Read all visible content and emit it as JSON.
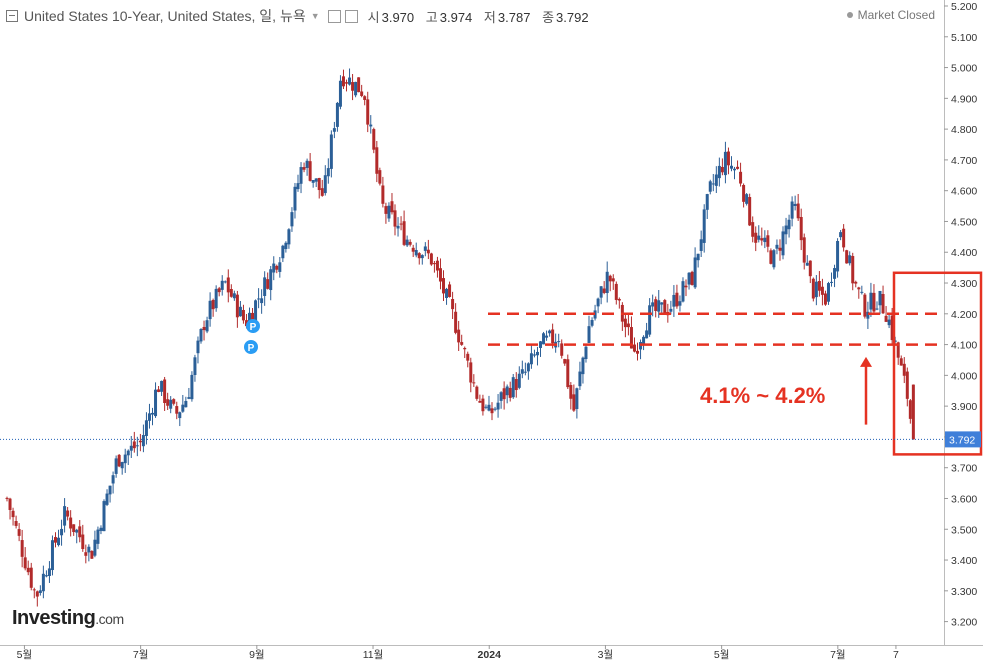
{
  "header": {
    "title": "United States 10-Year, United States, 일, 뉴욕",
    "open_label": "시",
    "open": "3.970",
    "high_label": "고",
    "high": "3.974",
    "low_label": "저",
    "low": "3.787",
    "close_label": "종",
    "close": "3.792",
    "status": "Market Closed"
  },
  "brand": {
    "name": "Investing",
    "suffix": ".com"
  },
  "annotation": {
    "text": "4.1% ~ 4.2%"
  },
  "colors": {
    "up": "#2b5f97",
    "down": "#b22a2a",
    "annotation": "#e53222",
    "price_line": "#1e5fb4",
    "price_badge": "#3f7fd9"
  },
  "chart_data": {
    "type": "candlestick",
    "title": "United States 10-Year, United States, 일, 뉴욕",
    "ylim": [
      3.16,
      5.22
    ],
    "y_ticks": [
      "5.200",
      "5.100",
      "5.000",
      "4.900",
      "4.800",
      "4.700",
      "4.600",
      "4.500",
      "4.400",
      "4.300",
      "4.200",
      "4.100",
      "4.000",
      "3.900",
      "3.800",
      "3.700",
      "3.600",
      "3.500",
      "3.400",
      "3.300",
      "3.200"
    ],
    "x_ticks": [
      "5월",
      "7월",
      "9월",
      "11월",
      "2024",
      "3월",
      "5월",
      "7월",
      "7"
    ],
    "x_tick_positions": [
      0.3,
      2.3,
      4.3,
      6.3,
      8.3,
      10.3,
      12.3,
      14.3,
      15.3
    ],
    "last_price": "3.792",
    "resistance_band": [
      4.1,
      4.2
    ],
    "path_points": [
      [
        0,
        3.6
      ],
      [
        0.5,
        3.28
      ],
      [
        1.0,
        3.55
      ],
      [
        1.45,
        3.42
      ],
      [
        1.9,
        3.73
      ],
      [
        2.3,
        3.78
      ],
      [
        2.6,
        3.97
      ],
      [
        2.9,
        3.87
      ],
      [
        3.1,
        3.93
      ],
      [
        3.4,
        4.18
      ],
      [
        3.75,
        4.3
      ],
      [
        4.1,
        4.17
      ],
      [
        4.4,
        4.28
      ],
      [
        4.75,
        4.42
      ],
      [
        5.1,
        4.7
      ],
      [
        5.45,
        4.58
      ],
      [
        5.75,
        4.98
      ],
      [
        6.15,
        4.92
      ],
      [
        6.45,
        4.55
      ],
      [
        6.9,
        4.44
      ],
      [
        7.3,
        4.38
      ],
      [
        7.7,
        4.18
      ],
      [
        8.1,
        3.93
      ],
      [
        8.3,
        3.87
      ],
      [
        8.6,
        3.95
      ],
      [
        8.9,
        4.0
      ],
      [
        9.2,
        4.1
      ],
      [
        9.5,
        4.13
      ],
      [
        9.75,
        3.88
      ],
      [
        10.0,
        4.15
      ],
      [
        10.35,
        4.33
      ],
      [
        10.6,
        4.18
      ],
      [
        10.8,
        4.08
      ],
      [
        11.05,
        4.2
      ],
      [
        11.4,
        4.22
      ],
      [
        11.8,
        4.32
      ],
      [
        12.1,
        4.6
      ],
      [
        12.35,
        4.7
      ],
      [
        12.6,
        4.66
      ],
      [
        12.85,
        4.46
      ],
      [
        13.2,
        4.38
      ],
      [
        13.55,
        4.55
      ],
      [
        13.85,
        4.28
      ],
      [
        14.1,
        4.25
      ],
      [
        14.35,
        4.48
      ],
      [
        14.55,
        4.32
      ],
      [
        14.75,
        4.22
      ],
      [
        15.0,
        4.25
      ],
      [
        15.15,
        4.2
      ],
      [
        15.35,
        4.05
      ],
      [
        15.5,
        3.93
      ],
      [
        15.6,
        3.792
      ]
    ],
    "breakout_arrow": {
      "from": 3.84,
      "to": 4.06
    },
    "markers": [
      "P",
      "P"
    ]
  }
}
